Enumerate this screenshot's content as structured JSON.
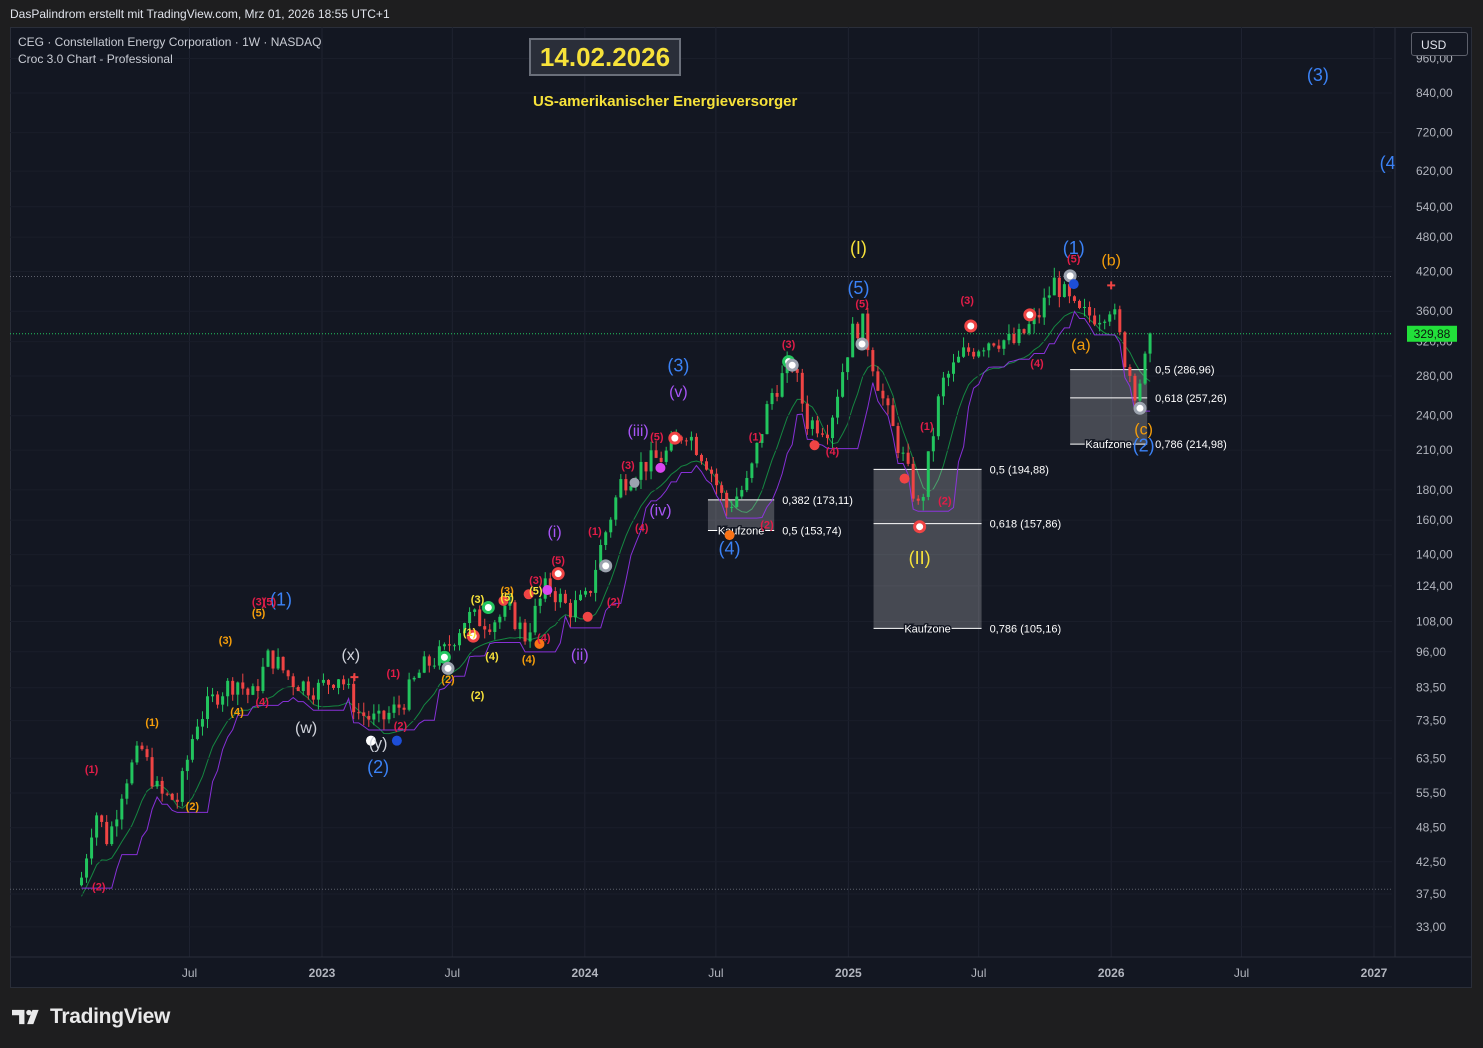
{
  "header": {
    "caption": "DasPalindrom erstellt mit TradingView.com, Mrz 01, 2026 18:55 UTC+1"
  },
  "symbol": {
    "line1": "CEG · Constellation Energy Corporation · 1W · NASDAQ",
    "line2": "Croc 3.0 Chart - Professional"
  },
  "annotations": {
    "date_box": "14.02.2026",
    "subtitle": "US-amerikanischer Energieversorger"
  },
  "currency_button": {
    "label": "USD"
  },
  "brand": {
    "name": "TradingView",
    "icon": "tradingview-logo-icon"
  },
  "colors": {
    "up": "#22c55e",
    "down": "#ef4444",
    "blue": "#3b82f6",
    "orange": "#f59e0b",
    "yellow": "#f7e23a",
    "purple": "#a855f7",
    "red": "#e11d48",
    "price_tag": "#22e03a"
  },
  "chart_data": {
    "type": "candlestick",
    "scale": "log",
    "ylim": [
      30,
      960
    ],
    "price_ticks": [
      "960,00",
      "840,00",
      "720,00",
      "620,00",
      "540,00",
      "480,00",
      "420,00",
      "360,00",
      "320,00",
      "280,00",
      "240,00",
      "210,00",
      "180,00",
      "160,00",
      "140,00",
      "124,00",
      "108,00",
      "96,00",
      "83,50",
      "73,50",
      "63,50",
      "55,50",
      "48,50",
      "42,50",
      "37,50",
      "33,00"
    ],
    "x_ticks": [
      {
        "label": "Jul",
        "date": "2022-07-01"
      },
      {
        "label": "2023",
        "date": "2023-01-01"
      },
      {
        "label": "Jul",
        "date": "2023-07-01"
      },
      {
        "label": "2024",
        "date": "2024-01-01"
      },
      {
        "label": "Jul",
        "date": "2024-07-01"
      },
      {
        "label": "2025",
        "date": "2025-01-01"
      },
      {
        "label": "Jul",
        "date": "2025-07-01"
      },
      {
        "label": "2026",
        "date": "2026-01-01"
      },
      {
        "label": "Jul",
        "date": "2026-07-01"
      },
      {
        "label": "2027",
        "date": "2027-01-01"
      }
    ],
    "last_price": 329.88,
    "last_price_label": "329,88",
    "horizontal_levels": [
      {
        "price": 412,
        "style": "dotted",
        "color": "#5d606b"
      },
      {
        "price": 38.2,
        "style": "dotted",
        "color": "#5d606b"
      },
      {
        "price": 329.88,
        "style": "dotted",
        "color": "#22c55e"
      }
    ],
    "price_path": [
      {
        "date": "2022-02-01",
        "price": 40
      },
      {
        "date": "2022-02-20",
        "price": 52
      },
      {
        "date": "2022-03-10",
        "price": 46
      },
      {
        "date": "2022-04-01",
        "price": 58
      },
      {
        "date": "2022-04-25",
        "price": 66
      },
      {
        "date": "2022-05-20",
        "price": 55
      },
      {
        "date": "2022-06-15",
        "price": 54
      },
      {
        "date": "2022-07-10",
        "price": 73
      },
      {
        "date": "2022-08-10",
        "price": 82
      },
      {
        "date": "2022-09-05",
        "price": 86
      },
      {
        "date": "2022-09-25",
        "price": 80
      },
      {
        "date": "2022-10-20",
        "price": 95
      },
      {
        "date": "2022-11-20",
        "price": 86
      },
      {
        "date": "2022-12-25",
        "price": 83
      },
      {
        "date": "2023-01-25",
        "price": 88
      },
      {
        "date": "2023-02-20",
        "price": 76
      },
      {
        "date": "2023-03-20",
        "price": 73
      },
      {
        "date": "2023-04-20",
        "price": 78
      },
      {
        "date": "2023-05-20",
        "price": 90
      },
      {
        "date": "2023-06-20",
        "price": 96
      },
      {
        "date": "2023-07-20",
        "price": 110
      },
      {
        "date": "2023-08-20",
        "price": 108
      },
      {
        "date": "2023-09-20",
        "price": 112
      },
      {
        "date": "2023-10-10",
        "price": 102
      },
      {
        "date": "2023-11-10",
        "price": 125
      },
      {
        "date": "2023-12-10",
        "price": 113
      },
      {
        "date": "2024-01-05",
        "price": 118
      },
      {
        "date": "2024-01-20",
        "price": 140
      },
      {
        "date": "2024-02-20",
        "price": 185
      },
      {
        "date": "2024-03-20",
        "price": 198
      },
      {
        "date": "2024-04-20",
        "price": 205
      },
      {
        "date": "2024-05-20",
        "price": 228
      },
      {
        "date": "2024-06-20",
        "price": 200
      },
      {
        "date": "2024-07-15",
        "price": 168
      },
      {
        "date": "2024-08-15",
        "price": 185
      },
      {
        "date": "2024-09-15",
        "price": 260
      },
      {
        "date": "2024-10-15",
        "price": 295
      },
      {
        "date": "2024-11-05",
        "price": 235
      },
      {
        "date": "2024-12-05",
        "price": 230
      },
      {
        "date": "2025-01-05",
        "price": 330
      },
      {
        "date": "2025-01-20",
        "price": 345
      },
      {
        "date": "2025-02-20",
        "price": 250
      },
      {
        "date": "2025-03-20",
        "price": 200
      },
      {
        "date": "2025-04-10",
        "price": 165
      },
      {
        "date": "2025-05-10",
        "price": 270
      },
      {
        "date": "2025-06-10",
        "price": 305
      },
      {
        "date": "2025-07-20",
        "price": 325
      },
      {
        "date": "2025-08-20",
        "price": 318
      },
      {
        "date": "2025-09-20",
        "price": 350
      },
      {
        "date": "2025-10-15",
        "price": 405
      },
      {
        "date": "2025-11-15",
        "price": 355
      },
      {
        "date": "2025-12-15",
        "price": 355
      },
      {
        "date": "2026-01-01",
        "price": 370
      },
      {
        "date": "2026-01-20",
        "price": 300
      },
      {
        "date": "2026-02-05",
        "price": 262
      },
      {
        "date": "2026-02-28",
        "price": 329.88
      }
    ],
    "fib_zones": [
      {
        "from": "2024-06-20",
        "to": "2024-09-20",
        "top": 173.11,
        "bottom": 153.74,
        "zone_label": "Kaufzone",
        "label_price": 153.74,
        "levels": [
          {
            "price": 173.11,
            "label": "0,382 (173,11)"
          },
          {
            "price": 153.74,
            "label": "0,5 (153,74)"
          }
        ]
      },
      {
        "from": "2025-02-05",
        "to": "2025-07-05",
        "top": 194.88,
        "bottom": 105.16,
        "zone_label": "Kaufzone",
        "label_price": 105.16,
        "levels": [
          {
            "price": 194.88,
            "label": "0,5 (194,88)"
          },
          {
            "price": 157.86,
            "label": "0,618 (157,86)"
          },
          {
            "price": 105.16,
            "label": "0,786 (105,16)"
          }
        ]
      },
      {
        "from": "2025-11-05",
        "to": "2026-02-20",
        "top": 286.96,
        "bottom": 214.98,
        "zone_label": "Kaufzone",
        "label_price": 214.98,
        "levels": [
          {
            "price": 286.96,
            "label": "0,5 (286,96)"
          },
          {
            "price": 257.26,
            "label": "0,618 (257,26)"
          },
          {
            "price": 214.98,
            "label": "0,786 (214,98)"
          }
        ]
      }
    ],
    "wave_labels": [
      {
        "text": "(1)",
        "date": "2022-11-05",
        "price": 115,
        "color": "blue",
        "size": "lg"
      },
      {
        "text": "(2)",
        "date": "2023-03-20",
        "price": 60,
        "color": "blue",
        "size": "lg"
      },
      {
        "text": "(3)",
        "date": "2024-05-10",
        "price": 285,
        "color": "blue",
        "size": "lg"
      },
      {
        "text": "(4)",
        "date": "2024-07-20",
        "price": 140,
        "color": "blue",
        "size": "lg"
      },
      {
        "text": "(5)",
        "date": "2025-01-15",
        "price": 385,
        "color": "blue",
        "size": "lg"
      },
      {
        "text": "(1)",
        "date": "2025-11-10",
        "price": 450,
        "color": "blue",
        "size": "lg"
      },
      {
        "text": "(2)",
        "date": "2026-02-15",
        "price": 209,
        "color": "blue",
        "size": "lg"
      },
      {
        "text": "(3)",
        "date": "2026-10-15",
        "price": 880,
        "color": "blue",
        "size": "lg"
      },
      {
        "text": "(4",
        "date": "2027-01-20",
        "price": 625,
        "color": "blue",
        "size": "lg"
      },
      {
        "text": "(I)",
        "date": "2025-01-15",
        "price": 450,
        "color": "yellow",
        "size": "lg"
      },
      {
        "text": "(II)",
        "date": "2025-04-10",
        "price": 135,
        "color": "yellow",
        "size": "lg"
      },
      {
        "text": "(x)",
        "date": "2023-02-10",
        "price": 93,
        "color": "white",
        "size": "md"
      },
      {
        "text": "(w)",
        "date": "2022-12-10",
        "price": 70,
        "color": "white",
        "size": "md"
      },
      {
        "text": "(y)",
        "date": "2023-03-20",
        "price": 66,
        "color": "white",
        "size": "md"
      },
      {
        "text": "(i)",
        "date": "2023-11-20",
        "price": 150,
        "color": "purple",
        "size": "md"
      },
      {
        "text": "(ii)",
        "date": "2023-12-25",
        "price": 93,
        "color": "purple",
        "size": "md"
      },
      {
        "text": "(iii)",
        "date": "2024-03-15",
        "price": 222,
        "color": "purple",
        "size": "md"
      },
      {
        "text": "(iv)",
        "date": "2024-04-15",
        "price": 163,
        "color": "purple",
        "size": "md"
      },
      {
        "text": "(v)",
        "date": "2024-05-10",
        "price": 258,
        "color": "purple",
        "size": "md"
      },
      {
        "text": "(a)",
        "date": "2025-11-20",
        "price": 310,
        "color": "orange",
        "size": "md"
      },
      {
        "text": "(b)",
        "date": "2026-01-01",
        "price": 430,
        "color": "orange",
        "size": "md"
      },
      {
        "text": "(c)",
        "date": "2026-02-15",
        "price": 223,
        "color": "orange",
        "size": "md"
      },
      {
        "text": "(1)",
        "date": "2022-02-15",
        "price": 60,
        "color": "red",
        "size": "sm"
      },
      {
        "text": "(2)",
        "date": "2022-02-25",
        "price": 38,
        "color": "red",
        "size": "sm"
      },
      {
        "text": "(1)",
        "date": "2022-05-10",
        "price": 72,
        "color": "orange",
        "size": "sm"
      },
      {
        "text": "(2)",
        "date": "2022-07-05",
        "price": 52,
        "color": "orange",
        "size": "sm"
      },
      {
        "text": "(3)",
        "date": "2022-08-20",
        "price": 99,
        "color": "orange",
        "size": "sm"
      },
      {
        "text": "(4)",
        "date": "2022-09-05",
        "price": 75,
        "color": "orange",
        "size": "sm"
      },
      {
        "text": "(3)",
        "date": "2022-10-05",
        "price": 115,
        "color": "red",
        "size": "sm"
      },
      {
        "text": "(5)",
        "date": "2022-10-05",
        "price": 110,
        "color": "orange",
        "size": "sm"
      },
      {
        "text": "(5)",
        "date": "2022-10-20",
        "price": 115,
        "color": "red",
        "size": "sm"
      },
      {
        "text": "(4)",
        "date": "2022-10-10",
        "price": 78,
        "color": "red",
        "size": "sm"
      },
      {
        "text": "(1)",
        "date": "2023-04-10",
        "price": 87,
        "color": "red",
        "size": "sm"
      },
      {
        "text": "(2)",
        "date": "2023-04-20",
        "price": 71,
        "color": "red",
        "size": "sm"
      },
      {
        "text": "(2)",
        "date": "2023-06-25",
        "price": 85,
        "color": "orange",
        "size": "sm"
      },
      {
        "text": "(1)",
        "date": "2023-07-25",
        "price": 102,
        "color": "yellow",
        "size": "sm"
      },
      {
        "text": "(2)",
        "date": "2023-08-05",
        "price": 80,
        "color": "yellow",
        "size": "sm"
      },
      {
        "text": "(3)",
        "date": "2023-08-05",
        "price": 116,
        "color": "yellow",
        "size": "sm"
      },
      {
        "text": "(3)",
        "date": "2023-09-15",
        "price": 120,
        "color": "orange",
        "size": "sm"
      },
      {
        "text": "(4)",
        "date": "2023-08-25",
        "price": 93,
        "color": "yellow",
        "size": "sm"
      },
      {
        "text": "(5)",
        "date": "2023-09-15",
        "price": 117,
        "color": "yellow",
        "size": "sm"
      },
      {
        "text": "(3)",
        "date": "2023-10-25",
        "price": 125,
        "color": "red",
        "size": "sm"
      },
      {
        "text": "(5)",
        "date": "2023-10-25",
        "price": 120,
        "color": "yellow",
        "size": "sm"
      },
      {
        "text": "(4)",
        "date": "2023-10-15",
        "price": 92,
        "color": "orange",
        "size": "sm"
      },
      {
        "text": "(4)",
        "date": "2023-11-05",
        "price": 100,
        "color": "red",
        "size": "sm"
      },
      {
        "text": "(5)",
        "date": "2023-11-25",
        "price": 135,
        "color": "red",
        "size": "sm"
      },
      {
        "text": "(1)",
        "date": "2024-01-15",
        "price": 151,
        "color": "red",
        "size": "sm"
      },
      {
        "text": "(2)",
        "date": "2024-02-10",
        "price": 115,
        "color": "red",
        "size": "sm"
      },
      {
        "text": "(3)",
        "date": "2024-03-01",
        "price": 195,
        "color": "red",
        "size": "sm"
      },
      {
        "text": "(4)",
        "date": "2024-03-20",
        "price": 153,
        "color": "red",
        "size": "sm"
      },
      {
        "text": "(5)",
        "date": "2024-04-10",
        "price": 218,
        "color": "red",
        "size": "sm"
      },
      {
        "text": "(1)",
        "date": "2024-08-25",
        "price": 218,
        "color": "red",
        "size": "sm"
      },
      {
        "text": "(2)",
        "date": "2024-09-10",
        "price": 155,
        "color": "red",
        "size": "sm"
      },
      {
        "text": "(3)",
        "date": "2024-10-10",
        "price": 312,
        "color": "red",
        "size": "sm"
      },
      {
        "text": "(4)",
        "date": "2024-12-10",
        "price": 206,
        "color": "red",
        "size": "sm"
      },
      {
        "text": "(5)",
        "date": "2025-01-20",
        "price": 365,
        "color": "red",
        "size": "sm"
      },
      {
        "text": "(1)",
        "date": "2025-04-20",
        "price": 227,
        "color": "red",
        "size": "sm"
      },
      {
        "text": "(2)",
        "date": "2025-05-15",
        "price": 170,
        "color": "red",
        "size": "sm"
      },
      {
        "text": "(3)",
        "date": "2025-06-15",
        "price": 370,
        "color": "red",
        "size": "sm"
      },
      {
        "text": "(4)",
        "date": "2025-09-20",
        "price": 290,
        "color": "red",
        "size": "sm"
      },
      {
        "text": "(5)",
        "date": "2025-11-10",
        "price": 435,
        "color": "red",
        "size": "sm"
      }
    ],
    "markers": [
      {
        "date": "2023-02-15",
        "price": 87,
        "type": "cross",
        "color": "#ef4444"
      },
      {
        "date": "2023-03-10",
        "price": 68,
        "type": "dot",
        "color": "#ffffff"
      },
      {
        "date": "2023-04-15",
        "price": 68,
        "type": "dot",
        "color": "#1d4ed8"
      },
      {
        "date": "2023-06-20",
        "price": 94,
        "type": "ring",
        "color": "#22c55e"
      },
      {
        "date": "2023-06-25",
        "price": 90,
        "type": "ring",
        "color": "#9ca3af"
      },
      {
        "date": "2023-07-30",
        "price": 102,
        "type": "ring",
        "color": "#ef4444"
      },
      {
        "date": "2023-08-20",
        "price": 114,
        "type": "ring",
        "color": "#22c55e"
      },
      {
        "date": "2023-09-10",
        "price": 117,
        "type": "dot",
        "color": "#ef4444"
      },
      {
        "date": "2023-10-15",
        "price": 120,
        "type": "dot",
        "color": "#ef4444"
      },
      {
        "date": "2023-10-30",
        "price": 99,
        "type": "dot",
        "color": "#f97316"
      },
      {
        "date": "2023-11-10",
        "price": 122,
        "type": "dot",
        "color": "#d946ef"
      },
      {
        "date": "2023-11-25",
        "price": 130,
        "type": "ring",
        "color": "#ef4444"
      },
      {
        "date": "2024-01-05",
        "price": 110,
        "type": "dot",
        "color": "#ef4444"
      },
      {
        "date": "2024-01-30",
        "price": 134,
        "type": "ring",
        "color": "#9ca3af"
      },
      {
        "date": "2024-03-10",
        "price": 185,
        "type": "dot",
        "color": "#9ca3af"
      },
      {
        "date": "2024-04-15",
        "price": 196,
        "type": "dot",
        "color": "#d946ef"
      },
      {
        "date": "2024-05-05",
        "price": 220,
        "type": "ring",
        "color": "#ef4444"
      },
      {
        "date": "2024-07-20",
        "price": 151,
        "type": "dot",
        "color": "#f97316"
      },
      {
        "date": "2024-10-10",
        "price": 296,
        "type": "ring",
        "color": "#22c55e"
      },
      {
        "date": "2024-10-15",
        "price": 292,
        "type": "ring",
        "color": "#9ca3af"
      },
      {
        "date": "2024-11-15",
        "price": 214,
        "type": "dot",
        "color": "#ef4444"
      },
      {
        "date": "2025-01-20",
        "price": 317,
        "type": "ring",
        "color": "#9ca3af"
      },
      {
        "date": "2025-03-20",
        "price": 188,
        "type": "dot",
        "color": "#ef4444"
      },
      {
        "date": "2025-04-10",
        "price": 156,
        "type": "ring",
        "color": "#ef4444"
      },
      {
        "date": "2025-06-20",
        "price": 340,
        "type": "ring",
        "color": "#ef4444"
      },
      {
        "date": "2025-09-10",
        "price": 355,
        "type": "ring",
        "color": "#ef4444"
      },
      {
        "date": "2025-11-05",
        "price": 413,
        "type": "ring",
        "color": "#9ca3af"
      },
      {
        "date": "2025-11-10",
        "price": 400,
        "type": "dot",
        "color": "#1d4ed8"
      },
      {
        "date": "2026-01-01",
        "price": 398,
        "type": "cross",
        "color": "#ef4444"
      },
      {
        "date": "2026-02-10",
        "price": 247,
        "type": "ring",
        "color": "#9ca3af"
      }
    ]
  }
}
